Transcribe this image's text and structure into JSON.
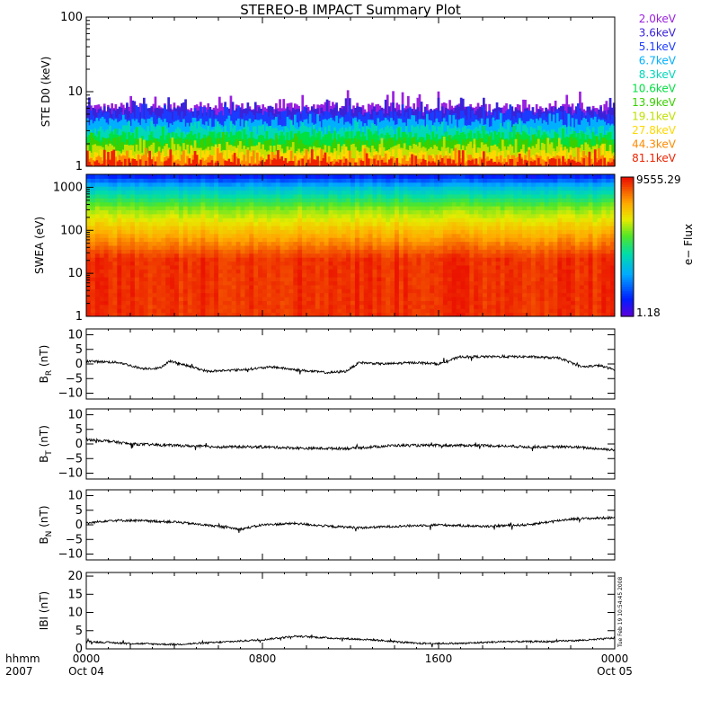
{
  "title": "STEREO-B IMPACT Summary Plot",
  "time_axis": {
    "unit_label": "hhmm",
    "year_label": "2007",
    "ticks": [
      {
        "time": "0000",
        "date": "Oct 04",
        "hours": 0
      },
      {
        "time": "0800",
        "date": "",
        "hours": 8
      },
      {
        "time": "1600",
        "date": "",
        "hours": 16
      },
      {
        "time": "0000",
        "date": "Oct 05",
        "hours": 24
      }
    ],
    "range_hours": [
      0,
      24
    ]
  },
  "timestamp_note": "Tue Feb 19 10:54:45 2008",
  "ste": {
    "ylabel": "STE D0 (keV)",
    "scale": "log",
    "ylim": [
      1,
      100
    ],
    "yticks": [
      "1",
      "10",
      "100"
    ],
    "channels": [
      {
        "name": "2.0keV",
        "color": "#9a20e0",
        "level": 6.2,
        "peak": 10.5
      },
      {
        "name": "3.6keV",
        "color": "#3a22d8",
        "level": 5.6,
        "peak": 8.5
      },
      {
        "name": "5.1keV",
        "color": "#1b3bff",
        "level": 4.9,
        "peak": 7.0
      },
      {
        "name": "6.7keV",
        "color": "#00b0ff",
        "level": 3.9,
        "peak": 5.2
      },
      {
        "name": "8.3keV",
        "color": "#00d8b8",
        "level": 3.1,
        "peak": 4.2
      },
      {
        "name": "10.6keV",
        "color": "#00e040",
        "level": 2.6,
        "peak": 3.5
      },
      {
        "name": "13.9keV",
        "color": "#38d000",
        "level": 2.1,
        "peak": 2.9
      },
      {
        "name": "19.1keV",
        "color": "#c0e000",
        "level": 1.75,
        "peak": 2.5
      },
      {
        "name": "27.8keV",
        "color": "#ffd800",
        "level": 1.45,
        "peak": 2.0
      },
      {
        "name": "44.3keV",
        "color": "#ff8a00",
        "level": 1.25,
        "peak": 1.8
      },
      {
        "name": "81.1keV",
        "color": "#ee2200",
        "level": 1.12,
        "peak": 1.7
      }
    ]
  },
  "swea": {
    "ylabel": "SWEA (eV)",
    "scale": "log",
    "ylim": [
      1,
      2000
    ],
    "yticks": [
      "1",
      "10",
      "100",
      "1000"
    ],
    "colorbar": {
      "label": "e− Flux",
      "max_label": "9555.29",
      "min_label": "1.18",
      "max": 9555.29,
      "min": 1.18
    }
  },
  "mag": {
    "br": {
      "ylabel_main": "B",
      "ylabel_sub": "R",
      "ylabel_unit": "(nT)",
      "ylim": [
        -12,
        12
      ],
      "yticks": [
        "−10",
        "−5",
        "0",
        "5",
        "10"
      ],
      "tick_values": [
        -10,
        -5,
        0,
        5,
        10
      ]
    },
    "bt": {
      "ylabel_main": "B",
      "ylabel_sub": "T",
      "ylabel_unit": "(nT)",
      "ylim": [
        -12,
        12
      ],
      "yticks": [
        "−10",
        "−5",
        "0",
        "5",
        "10"
      ],
      "tick_values": [
        -10,
        -5,
        0,
        5,
        10
      ]
    },
    "bn": {
      "ylabel_main": "B",
      "ylabel_sub": "N",
      "ylabel_unit": "(nT)",
      "ylim": [
        -12,
        12
      ],
      "yticks": [
        "−10",
        "−5",
        "0",
        "5",
        "10"
      ],
      "tick_values": [
        -10,
        -5,
        0,
        5,
        10
      ]
    },
    "btot": {
      "ylabel_main": "IBI",
      "ylabel_sub": "",
      "ylabel_unit": "(nT)",
      "ylim": [
        0,
        21
      ],
      "yticks": [
        "0",
        "5",
        "10",
        "15",
        "20"
      ],
      "tick_values": [
        0,
        5,
        10,
        15,
        20
      ]
    }
  },
  "chart_data": [
    {
      "type": "line",
      "name": "STE D0",
      "note": "11 energy channels, count-rate-like time series on log axis",
      "ylim": [
        1,
        100
      ],
      "series_levels": [
        6.2,
        5.6,
        4.9,
        3.9,
        3.1,
        2.6,
        2.1,
        1.75,
        1.45,
        1.25,
        1.12
      ]
    },
    {
      "type": "heatmap",
      "name": "SWEA",
      "ylim": [
        1,
        2000
      ],
      "zlim": [
        1.18,
        9555.29
      ]
    },
    {
      "type": "line",
      "name": "BR",
      "x": [
        0,
        1.5,
        2.5,
        3.3,
        3.8,
        4.3,
        5.5,
        7,
        8.5,
        9.5,
        11,
        11.8,
        12.4,
        13.5,
        15,
        16,
        17,
        20,
        21.5,
        22.5,
        23.3,
        24
      ],
      "y": [
        1.0,
        0.5,
        -1.5,
        -1.5,
        1.0,
        0.0,
        -2.5,
        -2.0,
        -1.0,
        -2.0,
        -3.0,
        -2.5,
        0.5,
        0.0,
        0.5,
        0.0,
        2.5,
        2.5,
        2.0,
        -1.0,
        -0.5,
        -2.0
      ]
    },
    {
      "type": "line",
      "name": "BT",
      "x": [
        0,
        1,
        2,
        4,
        6,
        8,
        10,
        12,
        14,
        16,
        18,
        20,
        22,
        23,
        24
      ],
      "y": [
        1.5,
        1.0,
        0.0,
        -0.5,
        -1.0,
        -1.0,
        -1.5,
        -1.5,
        -0.5,
        -0.5,
        -0.5,
        -1.0,
        -1.0,
        -1.5,
        -2.0
      ]
    },
    {
      "type": "line",
      "name": "BN",
      "x": [
        0,
        1,
        2,
        4,
        6,
        7,
        8,
        9.5,
        11,
        12.5,
        14,
        16,
        18,
        20,
        22,
        24
      ],
      "y": [
        0.5,
        1.5,
        1.5,
        1.0,
        -0.5,
        -1.5,
        0.0,
        0.5,
        -0.5,
        -1.0,
        -0.5,
        0.0,
        -0.5,
        0.0,
        2.0,
        2.5
      ]
    },
    {
      "type": "line",
      "name": "IBI",
      "x": [
        0,
        2,
        4,
        5,
        6,
        8,
        9.5,
        11,
        13,
        15,
        17,
        19,
        21,
        23,
        24
      ],
      "y": [
        2.0,
        1.5,
        1.2,
        1.5,
        1.8,
        2.5,
        3.5,
        3.0,
        2.5,
        1.5,
        1.5,
        2.0,
        2.0,
        2.5,
        3.0
      ]
    }
  ]
}
